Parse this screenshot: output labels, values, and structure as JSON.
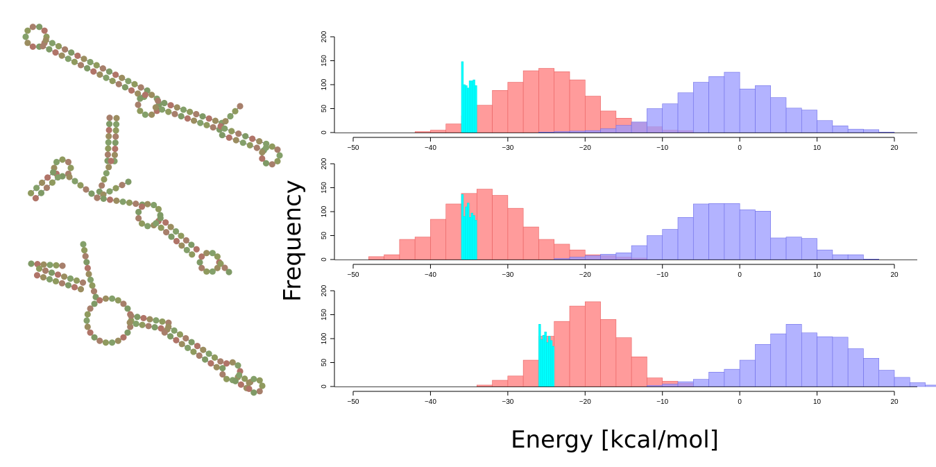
{
  "chart_data": {
    "type": "bar",
    "xlabel": "Energy [kcal/mol]",
    "ylabel": "Frequency",
    "xlim": [
      -50,
      20
    ],
    "ylim": [
      0,
      200
    ],
    "x_ticks": [
      -50,
      -40,
      -30,
      -20,
      -10,
      0,
      10,
      20
    ],
    "y_ticks": [
      0,
      50,
      100,
      150,
      200
    ],
    "colors": {
      "red": "#ff8a8a",
      "blue": "#9999ff",
      "cyan": "#00ffff",
      "overlap": "#b57fd0"
    },
    "panels": [
      {
        "red": {
          "start": -42,
          "width": 2,
          "values": [
            2,
            5,
            18,
            35,
            57,
            88,
            105,
            129,
            134,
            127,
            110,
            76,
            45,
            30,
            22,
            12,
            5,
            4
          ]
        },
        "blue": {
          "start": -26,
          "width": 2,
          "values": [
            1,
            2,
            3,
            4,
            8,
            15,
            22,
            50,
            60,
            83,
            105,
            117,
            126,
            91,
            98,
            73,
            51,
            47,
            25,
            14,
            7,
            6,
            1
          ]
        },
        "cyan": {
          "start": -36,
          "width": 0.25,
          "values": [
            148,
            100,
            98,
            93,
            108,
            108,
            110,
            98
          ]
        }
      },
      {
        "red": {
          "start": -48,
          "width": 2,
          "values": [
            6,
            10,
            42,
            47,
            84,
            116,
            138,
            147,
            134,
            107,
            68,
            42,
            32,
            20,
            10,
            8,
            5,
            3
          ]
        },
        "blue": {
          "start": -24,
          "width": 2,
          "values": [
            2,
            5,
            8,
            11,
            14,
            29,
            50,
            63,
            88,
            116,
            117,
            117,
            104,
            101,
            45,
            47,
            44,
            20,
            10,
            10,
            1
          ]
        },
        "cyan": {
          "start": -36,
          "width": 0.25,
          "values": [
            136,
            90,
            110,
            118,
            88,
            97,
            92,
            82
          ]
        }
      },
      {
        "red": {
          "start": -34,
          "width": 2,
          "values": [
            3,
            13,
            22,
            55,
            105,
            136,
            168,
            177,
            140,
            102,
            62,
            18,
            11,
            7
          ]
        },
        "blue": {
          "start": -12,
          "width": 2,
          "values": [
            2,
            5,
            10,
            15,
            30,
            36,
            55,
            88,
            110,
            130,
            112,
            104,
            103,
            79,
            59,
            34,
            19,
            8,
            3
          ]
        },
        "cyan": {
          "start": -26,
          "width": 0.25,
          "values": [
            130,
            98,
            107,
            114,
            92,
            105,
            96,
            84
          ]
        }
      }
    ]
  }
}
